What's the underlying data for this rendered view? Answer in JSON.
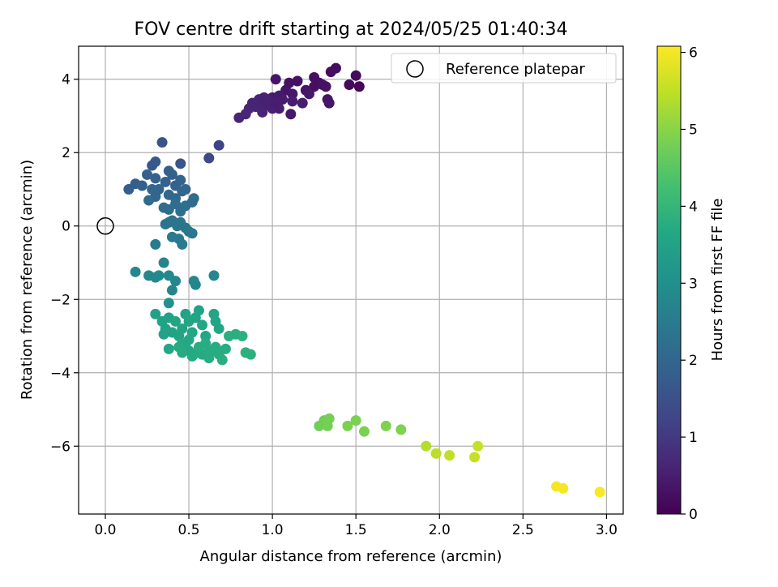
{
  "chart_data": {
    "type": "scatter",
    "title": "FOV centre drift starting at 2024/05/25 01:40:34",
    "xlabel": "Angular distance from reference (arcmin)",
    "ylabel": "Rotation from reference (arcmin)",
    "xlim": [
      -0.16,
      3.1
    ],
    "ylim": [
      -7.85,
      4.9
    ],
    "xticks": [
      0.0,
      0.5,
      1.0,
      1.5,
      2.0,
      2.5,
      3.0
    ],
    "xtick_labels": [
      "0.0",
      "0.5",
      "1.0",
      "1.5",
      "2.0",
      "2.5",
      "3.0"
    ],
    "yticks": [
      -6,
      -4,
      -2,
      0,
      2,
      4
    ],
    "ytick_labels": [
      "−6",
      "−4",
      "−2",
      "0",
      "2",
      "4"
    ],
    "grid": true,
    "legend": {
      "position": "upper right",
      "entries": [
        "Reference platepar"
      ]
    },
    "colorbar": {
      "label": "Hours from first FF file",
      "colormap": "viridis",
      "range": [
        0,
        6.08
      ],
      "ticks": [
        0,
        1,
        2,
        3,
        4,
        5,
        6
      ],
      "tick_labels": [
        "0",
        "1",
        "2",
        "3",
        "4",
        "5",
        "6"
      ]
    },
    "reference_point": {
      "x": 0.0,
      "y": 0.0
    },
    "series": [
      {
        "marker": "filled-circle",
        "color_by": "hours",
        "points": [
          [
            1.02,
            4.0
          ],
          [
            1.08,
            3.7
          ],
          [
            1.1,
            3.9
          ],
          [
            1.12,
            3.6
          ],
          [
            1.15,
            3.95
          ],
          [
            1.2,
            3.7
          ],
          [
            1.25,
            3.8
          ],
          [
            1.25,
            4.05
          ],
          [
            1.28,
            3.9
          ],
          [
            1.3,
            3.85
          ],
          [
            1.32,
            3.8
          ],
          [
            1.35,
            4.2
          ],
          [
            1.38,
            4.3
          ],
          [
            1.46,
            3.85
          ],
          [
            1.5,
            4.1
          ],
          [
            1.52,
            3.8
          ],
          [
            1.0,
            3.5
          ],
          [
            1.04,
            3.55
          ],
          [
            1.06,
            3.45
          ],
          [
            1.12,
            3.4
          ],
          [
            1.18,
            3.35
          ],
          [
            1.22,
            3.6
          ],
          [
            1.33,
            3.45
          ],
          [
            1.34,
            3.35
          ],
          [
            1.11,
            3.05
          ],
          [
            0.8,
            2.95
          ],
          [
            0.84,
            3.05
          ],
          [
            0.86,
            3.2
          ],
          [
            0.88,
            3.35
          ],
          [
            0.9,
            3.25
          ],
          [
            0.92,
            3.45
          ],
          [
            0.94,
            3.1
          ],
          [
            0.96,
            3.3
          ],
          [
            0.98,
            3.4
          ],
          [
            1.0,
            3.2
          ],
          [
            1.02,
            3.35
          ],
          [
            1.04,
            3.2
          ],
          [
            0.95,
            3.5
          ],
          [
            0.34,
            2.28
          ],
          [
            0.62,
            1.85
          ],
          [
            0.68,
            2.2
          ],
          [
            0.45,
            1.7
          ],
          [
            0.28,
            1.65
          ],
          [
            0.3,
            1.75
          ],
          [
            0.14,
            1.0
          ],
          [
            0.18,
            1.15
          ],
          [
            0.22,
            1.1
          ],
          [
            0.25,
            1.4
          ],
          [
            0.3,
            1.3
          ],
          [
            0.32,
            1.0
          ],
          [
            0.36,
            1.2
          ],
          [
            0.38,
            1.5
          ],
          [
            0.4,
            1.4
          ],
          [
            0.42,
            1.1
          ],
          [
            0.45,
            1.25
          ],
          [
            0.46,
            0.95
          ],
          [
            0.48,
            1.0
          ],
          [
            0.38,
            0.85
          ],
          [
            0.42,
            0.75
          ],
          [
            0.3,
            0.8
          ],
          [
            0.26,
            0.7
          ],
          [
            0.28,
            1.0
          ],
          [
            0.35,
            0.5
          ],
          [
            0.38,
            0.45
          ],
          [
            0.42,
            0.6
          ],
          [
            0.45,
            0.4
          ],
          [
            0.48,
            0.55
          ],
          [
            0.52,
            0.65
          ],
          [
            0.53,
            0.75
          ],
          [
            0.38,
            0.1
          ],
          [
            0.36,
            0.05
          ],
          [
            0.4,
            0.15
          ],
          [
            0.43,
            0.0
          ],
          [
            0.45,
            0.1
          ],
          [
            0.48,
            -0.05
          ],
          [
            0.5,
            -0.15
          ],
          [
            0.52,
            -0.2
          ],
          [
            0.4,
            -0.3
          ],
          [
            0.44,
            -0.35
          ],
          [
            0.46,
            -0.5
          ],
          [
            0.3,
            -0.5
          ],
          [
            0.18,
            -1.25
          ],
          [
            0.26,
            -1.35
          ],
          [
            0.3,
            -1.4
          ],
          [
            0.32,
            -1.35
          ],
          [
            0.35,
            -1.0
          ],
          [
            0.38,
            -1.35
          ],
          [
            0.4,
            -1.75
          ],
          [
            0.42,
            -1.5
          ],
          [
            0.53,
            -1.5
          ],
          [
            0.54,
            -1.6
          ],
          [
            0.65,
            -1.35
          ],
          [
            0.38,
            -2.1
          ],
          [
            0.3,
            -2.4
          ],
          [
            0.34,
            -2.6
          ],
          [
            0.36,
            -2.8
          ],
          [
            0.38,
            -2.5
          ],
          [
            0.4,
            -2.9
          ],
          [
            0.42,
            -2.6
          ],
          [
            0.44,
            -3.0
          ],
          [
            0.46,
            -2.8
          ],
          [
            0.48,
            -2.4
          ],
          [
            0.5,
            -2.6
          ],
          [
            0.52,
            -2.9
          ],
          [
            0.54,
            -2.5
          ],
          [
            0.56,
            -2.3
          ],
          [
            0.58,
            -2.7
          ],
          [
            0.6,
            -3.0
          ],
          [
            0.65,
            -2.4
          ],
          [
            0.66,
            -2.6
          ],
          [
            0.68,
            -2.8
          ],
          [
            0.35,
            -2.95
          ],
          [
            0.38,
            -3.35
          ],
          [
            0.46,
            -3.2
          ],
          [
            0.48,
            -3.3
          ],
          [
            0.5,
            -3.4
          ],
          [
            0.52,
            -3.55
          ],
          [
            0.55,
            -3.45
          ],
          [
            0.58,
            -3.5
          ],
          [
            0.6,
            -3.2
          ],
          [
            0.62,
            -3.6
          ],
          [
            0.64,
            -3.4
          ],
          [
            0.66,
            -3.3
          ],
          [
            0.68,
            -3.5
          ],
          [
            0.7,
            -3.65
          ],
          [
            0.72,
            -3.35
          ],
          [
            0.74,
            -3.0
          ],
          [
            0.78,
            -2.95
          ],
          [
            0.82,
            -3.0
          ],
          [
            0.84,
            -3.45
          ],
          [
            0.87,
            -3.5
          ],
          [
            0.44,
            -3.3
          ],
          [
            0.46,
            -3.45
          ],
          [
            0.5,
            -3.1
          ],
          [
            0.56,
            -3.3
          ],
          [
            0.62,
            -3.4
          ],
          [
            1.28,
            -5.45
          ],
          [
            1.31,
            -5.3
          ],
          [
            1.33,
            -5.45
          ],
          [
            1.34,
            -5.25
          ],
          [
            1.45,
            -5.45
          ],
          [
            1.5,
            -5.3
          ],
          [
            1.55,
            -5.6
          ],
          [
            1.68,
            -5.45
          ],
          [
            1.77,
            -5.55
          ],
          [
            1.92,
            -6.0
          ],
          [
            1.98,
            -6.2
          ],
          [
            2.06,
            -6.25
          ],
          [
            2.21,
            -6.3
          ],
          [
            2.23,
            -6.0
          ],
          [
            2.7,
            -7.1
          ],
          [
            2.74,
            -7.15
          ],
          [
            2.96,
            -7.25
          ]
        ],
        "hours": [
          0.35,
          0.35,
          0.3,
          0.4,
          0.3,
          0.35,
          0.25,
          0.25,
          0.25,
          0.3,
          0.3,
          0.2,
          0.2,
          0.15,
          0.15,
          0.1,
          0.45,
          0.45,
          0.45,
          0.5,
          0.5,
          0.4,
          0.35,
          0.35,
          0.4,
          0.65,
          0.65,
          0.65,
          0.6,
          0.6,
          0.6,
          0.6,
          0.55,
          0.55,
          0.55,
          0.5,
          0.5,
          0.55,
          1.55,
          1.3,
          1.2,
          1.6,
          1.65,
          1.7,
          1.8,
          1.8,
          1.85,
          1.85,
          1.9,
          1.95,
          1.9,
          1.85,
          1.9,
          1.9,
          1.95,
          2.0,
          2.0,
          2.05,
          2.05,
          2.0,
          2.1,
          2.0,
          2.15,
          2.15,
          2.2,
          2.2,
          2.2,
          2.15,
          2.15,
          2.3,
          2.3,
          2.3,
          2.35,
          2.35,
          2.35,
          2.4,
          2.4,
          2.45,
          2.45,
          2.5,
          2.5,
          2.8,
          2.8,
          2.85,
          2.85,
          2.75,
          2.85,
          2.75,
          2.8,
          2.8,
          2.75,
          2.8,
          3.05,
          3.45,
          3.5,
          3.5,
          3.45,
          3.5,
          3.55,
          3.55,
          3.55,
          3.5,
          3.55,
          3.6,
          3.55,
          3.5,
          3.6,
          3.6,
          3.55,
          3.6,
          3.6,
          3.5,
          3.6,
          3.7,
          3.65,
          3.65,
          3.7,
          3.7,
          3.7,
          3.75,
          3.75,
          3.7,
          3.75,
          3.75,
          3.8,
          3.75,
          3.8,
          3.8,
          3.85,
          3.85,
          3.85,
          3.7,
          3.7,
          3.65,
          3.75,
          3.75,
          4.75,
          4.75,
          4.8,
          4.8,
          4.85,
          4.85,
          4.85,
          4.9,
          4.9,
          5.4,
          5.45,
          5.5,
          5.55,
          5.55,
          6.0,
          6.0,
          6.05
        ]
      }
    ]
  }
}
